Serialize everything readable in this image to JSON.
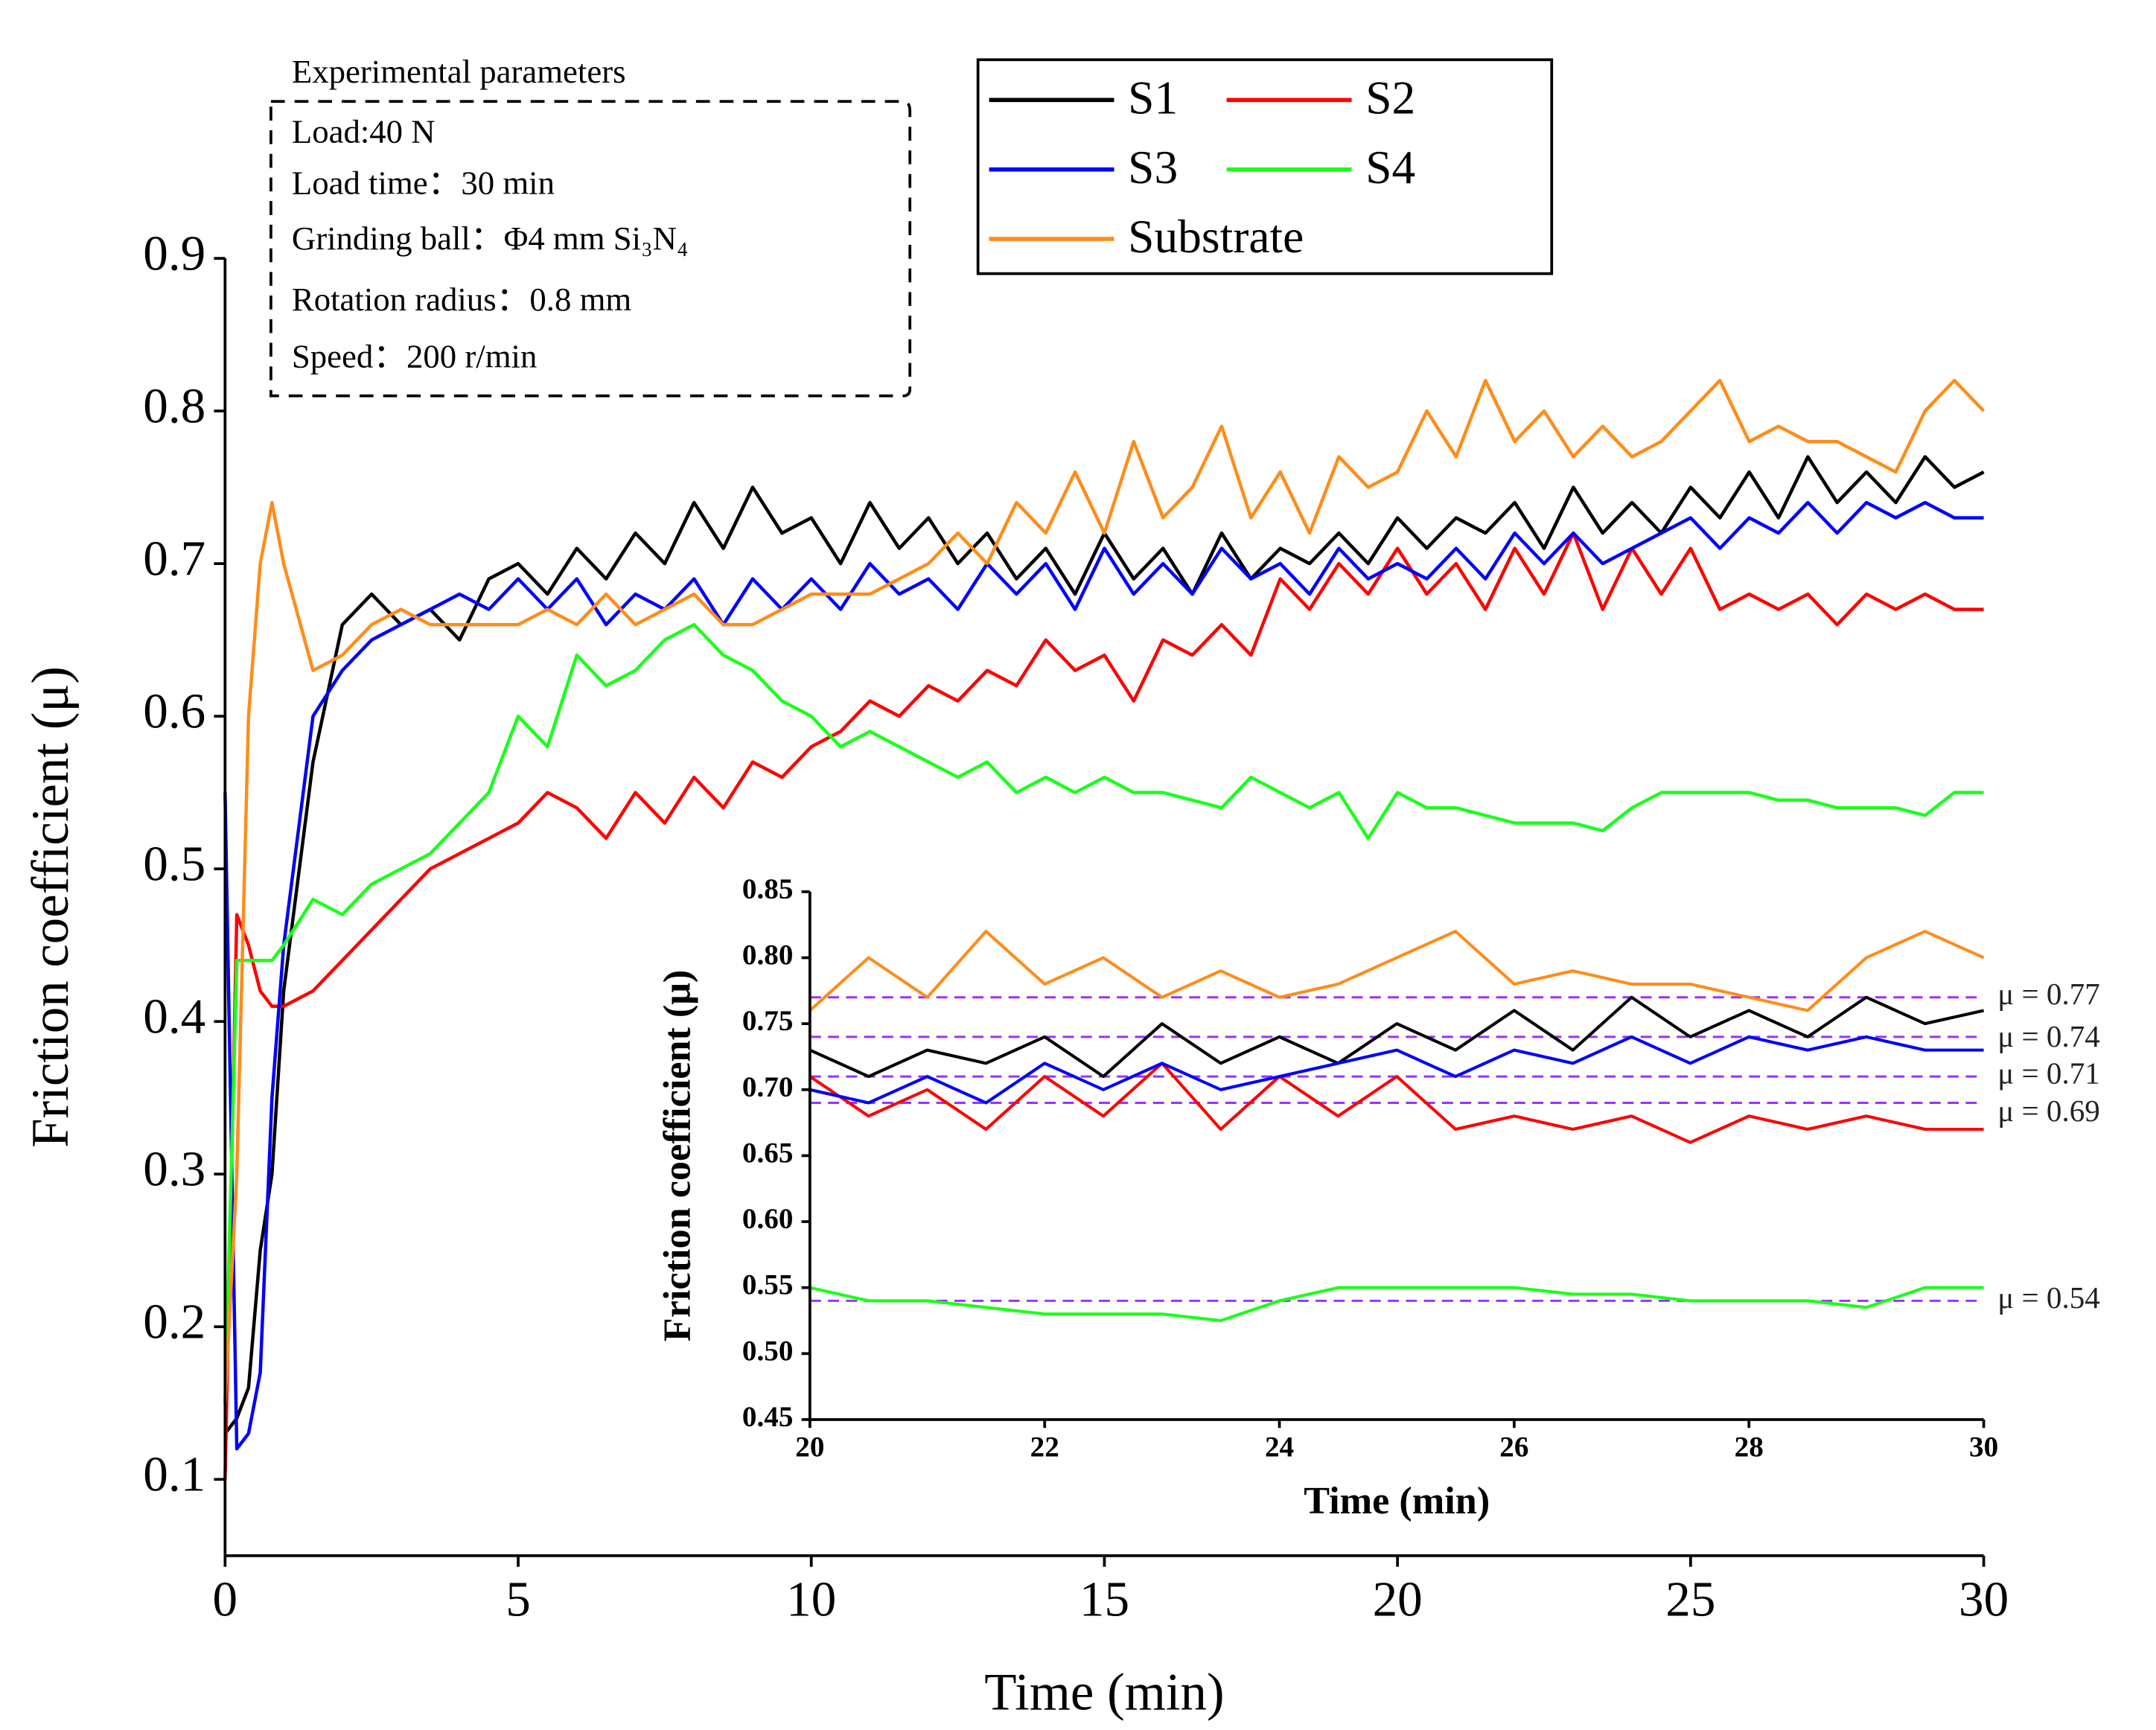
{
  "chart_data": [
    {
      "type": "line",
      "xlabel": "Time (min)",
      "ylabel": "Friction coefficient (μ)",
      "xlim": [
        0,
        30
      ],
      "ylim": [
        0.05,
        0.9
      ],
      "xticks": [
        0,
        5,
        10,
        15,
        20,
        25,
        30
      ],
      "yticks": [
        0.1,
        0.2,
        0.3,
        0.4,
        0.5,
        0.6,
        0.7,
        0.8,
        0.9
      ],
      "grid": false,
      "legend": "upper center",
      "annotation": {
        "title": "Experimental parameters",
        "lines": [
          "Load:40 N",
          "Load time：30 min",
          "Grinding ball：Φ4 mm Si₃N₄",
          "Rotation radius：0.8 mm",
          "Speed：200 r/min"
        ]
      },
      "x": [
        0,
        0.2,
        0.4,
        0.6,
        0.8,
        1,
        1.5,
        2,
        2.5,
        3,
        3.5,
        4,
        4.5,
        5,
        5.5,
        6,
        6.5,
        7,
        7.5,
        8,
        8.5,
        9,
        9.5,
        10,
        10.5,
        11,
        11.5,
        12,
        12.5,
        13,
        13.5,
        14,
        14.5,
        15,
        15.5,
        16,
        16.5,
        17,
        17.5,
        18,
        18.5,
        19,
        19.5,
        20,
        20.5,
        21,
        21.5,
        22,
        22.5,
        23,
        23.5,
        24,
        24.5,
        25,
        25.5,
        26,
        26.5,
        27,
        27.5,
        28,
        28.5,
        29,
        29.5,
        30
      ],
      "series": [
        {
          "name": "S1",
          "color": "#000000",
          "values": [
            0.13,
            0.14,
            0.16,
            0.25,
            0.3,
            0.42,
            0.57,
            0.66,
            0.68,
            0.66,
            0.67,
            0.65,
            0.69,
            0.7,
            0.68,
            0.71,
            0.69,
            0.72,
            0.7,
            0.74,
            0.71,
            0.75,
            0.72,
            0.73,
            0.7,
            0.74,
            0.71,
            0.73,
            0.7,
            0.72,
            0.69,
            0.71,
            0.68,
            0.72,
            0.69,
            0.71,
            0.68,
            0.72,
            0.69,
            0.71,
            0.7,
            0.72,
            0.7,
            0.73,
            0.71,
            0.73,
            0.72,
            0.74,
            0.71,
            0.75,
            0.72,
            0.74,
            0.72,
            0.75,
            0.73,
            0.76,
            0.73,
            0.77,
            0.74,
            0.76,
            0.74,
            0.77,
            0.75,
            0.76
          ]
        },
        {
          "name": "S2",
          "color": "#ff0000",
          "values": [
            0.1,
            0.47,
            0.45,
            0.42,
            0.41,
            0.41,
            0.42,
            0.44,
            0.46,
            0.48,
            0.5,
            0.51,
            0.52,
            0.53,
            0.55,
            0.54,
            0.52,
            0.55,
            0.53,
            0.56,
            0.54,
            0.57,
            0.56,
            0.58,
            0.59,
            0.61,
            0.6,
            0.62,
            0.61,
            0.63,
            0.62,
            0.65,
            0.63,
            0.64,
            0.61,
            0.65,
            0.64,
            0.66,
            0.64,
            0.69,
            0.67,
            0.7,
            0.68,
            0.71,
            0.68,
            0.7,
            0.67,
            0.71,
            0.68,
            0.72,
            0.67,
            0.71,
            0.68,
            0.71,
            0.67,
            0.68,
            0.67,
            0.68,
            0.66,
            0.68,
            0.67,
            0.68,
            0.67,
            0.67
          ]
        },
        {
          "name": "S3",
          "color": "#0000ff",
          "values": [
            0.55,
            0.12,
            0.13,
            0.17,
            0.35,
            0.45,
            0.6,
            0.63,
            0.65,
            0.66,
            0.67,
            0.68,
            0.67,
            0.69,
            0.67,
            0.69,
            0.66,
            0.68,
            0.67,
            0.69,
            0.66,
            0.69,
            0.67,
            0.69,
            0.67,
            0.7,
            0.68,
            0.69,
            0.67,
            0.7,
            0.68,
            0.7,
            0.67,
            0.71,
            0.68,
            0.7,
            0.68,
            0.71,
            0.69,
            0.7,
            0.68,
            0.71,
            0.69,
            0.7,
            0.69,
            0.71,
            0.69,
            0.72,
            0.7,
            0.72,
            0.7,
            0.71,
            0.72,
            0.73,
            0.71,
            0.73,
            0.72,
            0.74,
            0.72,
            0.74,
            0.73,
            0.74,
            0.73,
            0.73
          ]
        },
        {
          "name": "S4",
          "color": "#1aff1a",
          "values": [
            0.15,
            0.44,
            0.44,
            0.44,
            0.44,
            0.45,
            0.48,
            0.47,
            0.49,
            0.5,
            0.51,
            0.53,
            0.55,
            0.6,
            0.58,
            0.64,
            0.62,
            0.63,
            0.65,
            0.66,
            0.64,
            0.63,
            0.61,
            0.6,
            0.58,
            0.59,
            0.58,
            0.57,
            0.56,
            0.57,
            0.55,
            0.56,
            0.55,
            0.56,
            0.55,
            0.55,
            0.545,
            0.54,
            0.56,
            0.55,
            0.54,
            0.55,
            0.52,
            0.55,
            0.54,
            0.54,
            0.535,
            0.53,
            0.53,
            0.53,
            0.525,
            0.54,
            0.55,
            0.55,
            0.55,
            0.55,
            0.545,
            0.545,
            0.54,
            0.54,
            0.54,
            0.535,
            0.55,
            0.55
          ]
        },
        {
          "name": "Substrate",
          "color": "#ff8c1a",
          "values": [
            0.15,
            0.3,
            0.6,
            0.7,
            0.74,
            0.7,
            0.63,
            0.64,
            0.66,
            0.67,
            0.66,
            0.66,
            0.66,
            0.66,
            0.67,
            0.66,
            0.68,
            0.66,
            0.67,
            0.68,
            0.66,
            0.66,
            0.67,
            0.68,
            0.68,
            0.68,
            0.69,
            0.7,
            0.72,
            0.7,
            0.74,
            0.72,
            0.76,
            0.72,
            0.78,
            0.73,
            0.75,
            0.79,
            0.73,
            0.76,
            0.72,
            0.77,
            0.75,
            0.76,
            0.8,
            0.77,
            0.82,
            0.78,
            0.8,
            0.77,
            0.79,
            0.77,
            0.78,
            0.8,
            0.82,
            0.78,
            0.79,
            0.78,
            0.78,
            0.77,
            0.76,
            0.8,
            0.82,
            0.8
          ]
        }
      ]
    },
    {
      "type": "line",
      "xlabel": "Time (min)",
      "ylabel": "Friction coefficient (μ)",
      "xlim": [
        20,
        30
      ],
      "ylim": [
        0.45,
        0.85
      ],
      "xticks": [
        20,
        22,
        24,
        26,
        28,
        30
      ],
      "yticks": [
        0.45,
        {
          "value": 0.5,
          "label": "0.50"
        },
        0.55,
        {
          "value": 0.6,
          "label": "0.60"
        },
        0.65,
        {
          "value": 0.7,
          "label": "0.70"
        },
        0.75,
        {
          "value": 0.8,
          "label": "0.80"
        },
        0.85
      ],
      "grid": false,
      "hlines": [
        {
          "value": 0.77,
          "label": "μ = 0.77"
        },
        {
          "value": 0.74,
          "label": "μ = 0.74"
        },
        {
          "value": 0.71,
          "label": "μ = 0.71"
        },
        {
          "value": 0.69,
          "label": "μ = 0.69"
        },
        {
          "value": 0.54,
          "label": "μ = 0.54"
        }
      ],
      "hline_color": "#9b30ff",
      "x": [
        20,
        20.5,
        21,
        21.5,
        22,
        22.5,
        23,
        23.5,
        24,
        24.5,
        25,
        25.5,
        26,
        26.5,
        27,
        27.5,
        28,
        28.5,
        29,
        29.5,
        30
      ],
      "series": [
        {
          "name": "S1",
          "color": "#000000",
          "values": [
            0.73,
            0.71,
            0.73,
            0.72,
            0.74,
            0.71,
            0.75,
            0.72,
            0.74,
            0.72,
            0.75,
            0.73,
            0.76,
            0.73,
            0.77,
            0.74,
            0.76,
            0.74,
            0.77,
            0.75,
            0.76
          ]
        },
        {
          "name": "S2",
          "color": "#ff0000",
          "values": [
            0.71,
            0.68,
            0.7,
            0.67,
            0.71,
            0.68,
            0.72,
            0.67,
            0.71,
            0.68,
            0.71,
            0.67,
            0.68,
            0.67,
            0.68,
            0.66,
            0.68,
            0.67,
            0.68,
            0.67,
            0.67
          ]
        },
        {
          "name": "S3",
          "color": "#0000ff",
          "values": [
            0.7,
            0.69,
            0.71,
            0.69,
            0.72,
            0.7,
            0.72,
            0.7,
            0.71,
            0.72,
            0.73,
            0.71,
            0.73,
            0.72,
            0.74,
            0.72,
            0.74,
            0.73,
            0.74,
            0.73,
            0.73
          ]
        },
        {
          "name": "S4",
          "color": "#1aff1a",
          "values": [
            0.55,
            0.54,
            0.54,
            0.535,
            0.53,
            0.53,
            0.53,
            0.525,
            0.54,
            0.55,
            0.55,
            0.55,
            0.55,
            0.545,
            0.545,
            0.54,
            0.54,
            0.54,
            0.535,
            0.55,
            0.55
          ]
        },
        {
          "name": "Substrate",
          "color": "#ff8c1a",
          "values": [
            0.76,
            0.8,
            0.77,
            0.82,
            0.78,
            0.8,
            0.77,
            0.79,
            0.77,
            0.78,
            0.8,
            0.82,
            0.78,
            0.79,
            0.78,
            0.78,
            0.77,
            0.76,
            0.8,
            0.82,
            0.8
          ]
        }
      ]
    }
  ]
}
